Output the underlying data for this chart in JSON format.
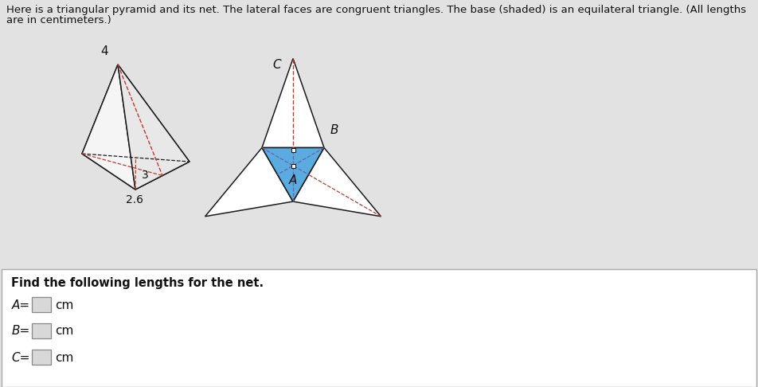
{
  "bg_color": "#e2e2e2",
  "title_text1": "Here is a triangular pyramid and its net. The lateral faces are congruent triangles. The base (shaded) is an equilateral triangle. (All lengths",
  "title_text2": "are in centimeters.)",
  "title_fontsize": 9.5,
  "pyramid_label_4": "4",
  "pyramid_label_3": "3",
  "pyramid_label_26": "2.6",
  "net_label_A": "A",
  "net_label_B": "B",
  "net_label_C": "C",
  "question_text": "Find the following lengths for the net.",
  "label_A": "A=",
  "label_B": "B=",
  "label_C": "C=",
  "unit": "cm",
  "blue_fill": "#5aace0",
  "red_dashed": "#c0392b",
  "dark_line": "#1a1a1a",
  "white_face": "#f8f8f8",
  "bottom_box_bg": "#ffffff",
  "input_box_bg": "#d8d8d8"
}
